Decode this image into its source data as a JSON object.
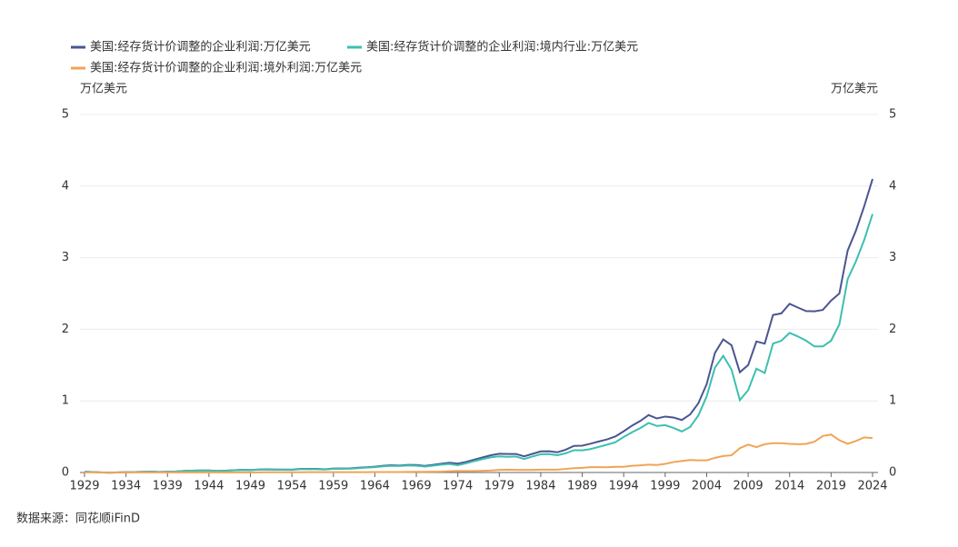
{
  "chart_data": {
    "type": "line",
    "y_label": "万亿美元",
    "y2_label": "万亿美元",
    "source": "数据来源：同花顺iFinD",
    "x": [
      1929,
      1930,
      1931,
      1932,
      1933,
      1934,
      1935,
      1936,
      1937,
      1938,
      1939,
      1940,
      1941,
      1942,
      1943,
      1944,
      1945,
      1946,
      1947,
      1948,
      1949,
      1950,
      1951,
      1952,
      1953,
      1954,
      1955,
      1956,
      1957,
      1958,
      1959,
      1960,
      1961,
      1962,
      1963,
      1964,
      1965,
      1966,
      1967,
      1968,
      1969,
      1970,
      1971,
      1972,
      1973,
      1974,
      1975,
      1976,
      1977,
      1978,
      1979,
      1980,
      1981,
      1982,
      1983,
      1984,
      1985,
      1986,
      1987,
      1988,
      1989,
      1990,
      1991,
      1992,
      1993,
      1994,
      1995,
      1996,
      1997,
      1998,
      1999,
      2000,
      2001,
      2002,
      2003,
      2004,
      2005,
      2006,
      2007,
      2008,
      2009,
      2010,
      2011,
      2012,
      2013,
      2014,
      2015,
      2016,
      2017,
      2018,
      2019,
      2020,
      2021,
      2022,
      2023,
      2024
    ],
    "xlim": [
      1929,
      2024
    ],
    "xticks": [
      1929,
      1934,
      1939,
      1944,
      1949,
      1954,
      1959,
      1964,
      1969,
      1974,
      1979,
      1984,
      1989,
      1994,
      1999,
      2004,
      2009,
      2014,
      2019,
      2024
    ],
    "ylim": [
      0,
      5
    ],
    "yticks": [
      0,
      1,
      2,
      3,
      4,
      5
    ],
    "y2lim": [
      0,
      5
    ],
    "y2ticks": [
      0,
      1,
      2,
      3,
      4,
      5
    ],
    "grid": true,
    "legend": "top-left",
    "series": [
      {
        "name": "美国:经存货计价调整的企业利润:万亿美元",
        "color": "#4b5590",
        "values": [
          0.011,
          0.007,
          0.001,
          -0.002,
          0.001,
          0.004,
          0.007,
          0.01,
          0.012,
          0.008,
          0.011,
          0.015,
          0.022,
          0.026,
          0.029,
          0.028,
          0.023,
          0.026,
          0.032,
          0.038,
          0.035,
          0.041,
          0.044,
          0.041,
          0.041,
          0.04,
          0.05,
          0.05,
          0.05,
          0.045,
          0.056,
          0.055,
          0.057,
          0.066,
          0.073,
          0.081,
          0.093,
          0.101,
          0.097,
          0.106,
          0.104,
          0.092,
          0.106,
          0.122,
          0.136,
          0.124,
          0.148,
          0.18,
          0.211,
          0.241,
          0.262,
          0.258,
          0.259,
          0.226,
          0.26,
          0.295,
          0.297,
          0.282,
          0.318,
          0.371,
          0.375,
          0.402,
          0.433,
          0.462,
          0.503,
          0.576,
          0.654,
          0.72,
          0.802,
          0.755,
          0.781,
          0.768,
          0.733,
          0.81,
          0.967,
          1.233,
          1.67,
          1.859,
          1.777,
          1.4,
          1.5,
          1.83,
          1.8,
          2.2,
          2.222,
          2.356,
          2.303,
          2.254,
          2.251,
          2.271,
          2.4,
          2.5,
          3.1,
          3.38,
          3.72,
          4.1
        ]
      },
      {
        "name": "美国:经存货计价调整的企业利润:境内行业:万亿美元",
        "color": "#3dbfb0",
        "values": [
          0.01,
          0.006,
          0.0,
          -0.003,
          0.0,
          0.003,
          0.006,
          0.009,
          0.011,
          0.007,
          0.01,
          0.014,
          0.021,
          0.025,
          0.028,
          0.027,
          0.022,
          0.024,
          0.03,
          0.036,
          0.033,
          0.039,
          0.041,
          0.038,
          0.038,
          0.037,
          0.047,
          0.046,
          0.046,
          0.041,
          0.052,
          0.051,
          0.053,
          0.061,
          0.068,
          0.075,
          0.086,
          0.094,
          0.09,
          0.098,
          0.095,
          0.082,
          0.095,
          0.11,
          0.119,
          0.102,
          0.128,
          0.159,
          0.187,
          0.213,
          0.225,
          0.219,
          0.223,
          0.19,
          0.223,
          0.255,
          0.257,
          0.242,
          0.268,
          0.311,
          0.31,
          0.327,
          0.358,
          0.389,
          0.423,
          0.496,
          0.561,
          0.62,
          0.692,
          0.65,
          0.661,
          0.623,
          0.573,
          0.635,
          0.797,
          1.063,
          1.465,
          1.629,
          1.437,
          1.01,
          1.15,
          1.45,
          1.39,
          1.8,
          1.84,
          1.95,
          1.9,
          1.84,
          1.76,
          1.76,
          1.84,
          2.07,
          2.7,
          2.95,
          3.25,
          3.61
        ]
      },
      {
        "name": "美国:经存货计价调整的企业利润:境外利润:万亿美元",
        "color": "#f0a457",
        "values": [
          0.001,
          0.001,
          0.001,
          0.001,
          0.001,
          0.001,
          0.001,
          0.001,
          0.001,
          0.001,
          0.001,
          0.001,
          0.001,
          0.001,
          0.001,
          0.001,
          0.001,
          0.002,
          0.002,
          0.002,
          0.002,
          0.002,
          0.003,
          0.003,
          0.003,
          0.003,
          0.003,
          0.004,
          0.004,
          0.004,
          0.004,
          0.004,
          0.004,
          0.005,
          0.005,
          0.006,
          0.007,
          0.007,
          0.007,
          0.008,
          0.009,
          0.01,
          0.011,
          0.012,
          0.017,
          0.022,
          0.02,
          0.021,
          0.024,
          0.028,
          0.037,
          0.039,
          0.036,
          0.036,
          0.037,
          0.04,
          0.04,
          0.04,
          0.05,
          0.06,
          0.065,
          0.075,
          0.075,
          0.073,
          0.08,
          0.08,
          0.093,
          0.1,
          0.11,
          0.105,
          0.12,
          0.145,
          0.16,
          0.175,
          0.17,
          0.17,
          0.205,
          0.23,
          0.24,
          0.34,
          0.39,
          0.355,
          0.395,
          0.41,
          0.41,
          0.4,
          0.395,
          0.4,
          0.43,
          0.51,
          0.53,
          0.45,
          0.4,
          0.44,
          0.49,
          0.48
        ]
      }
    ]
  }
}
